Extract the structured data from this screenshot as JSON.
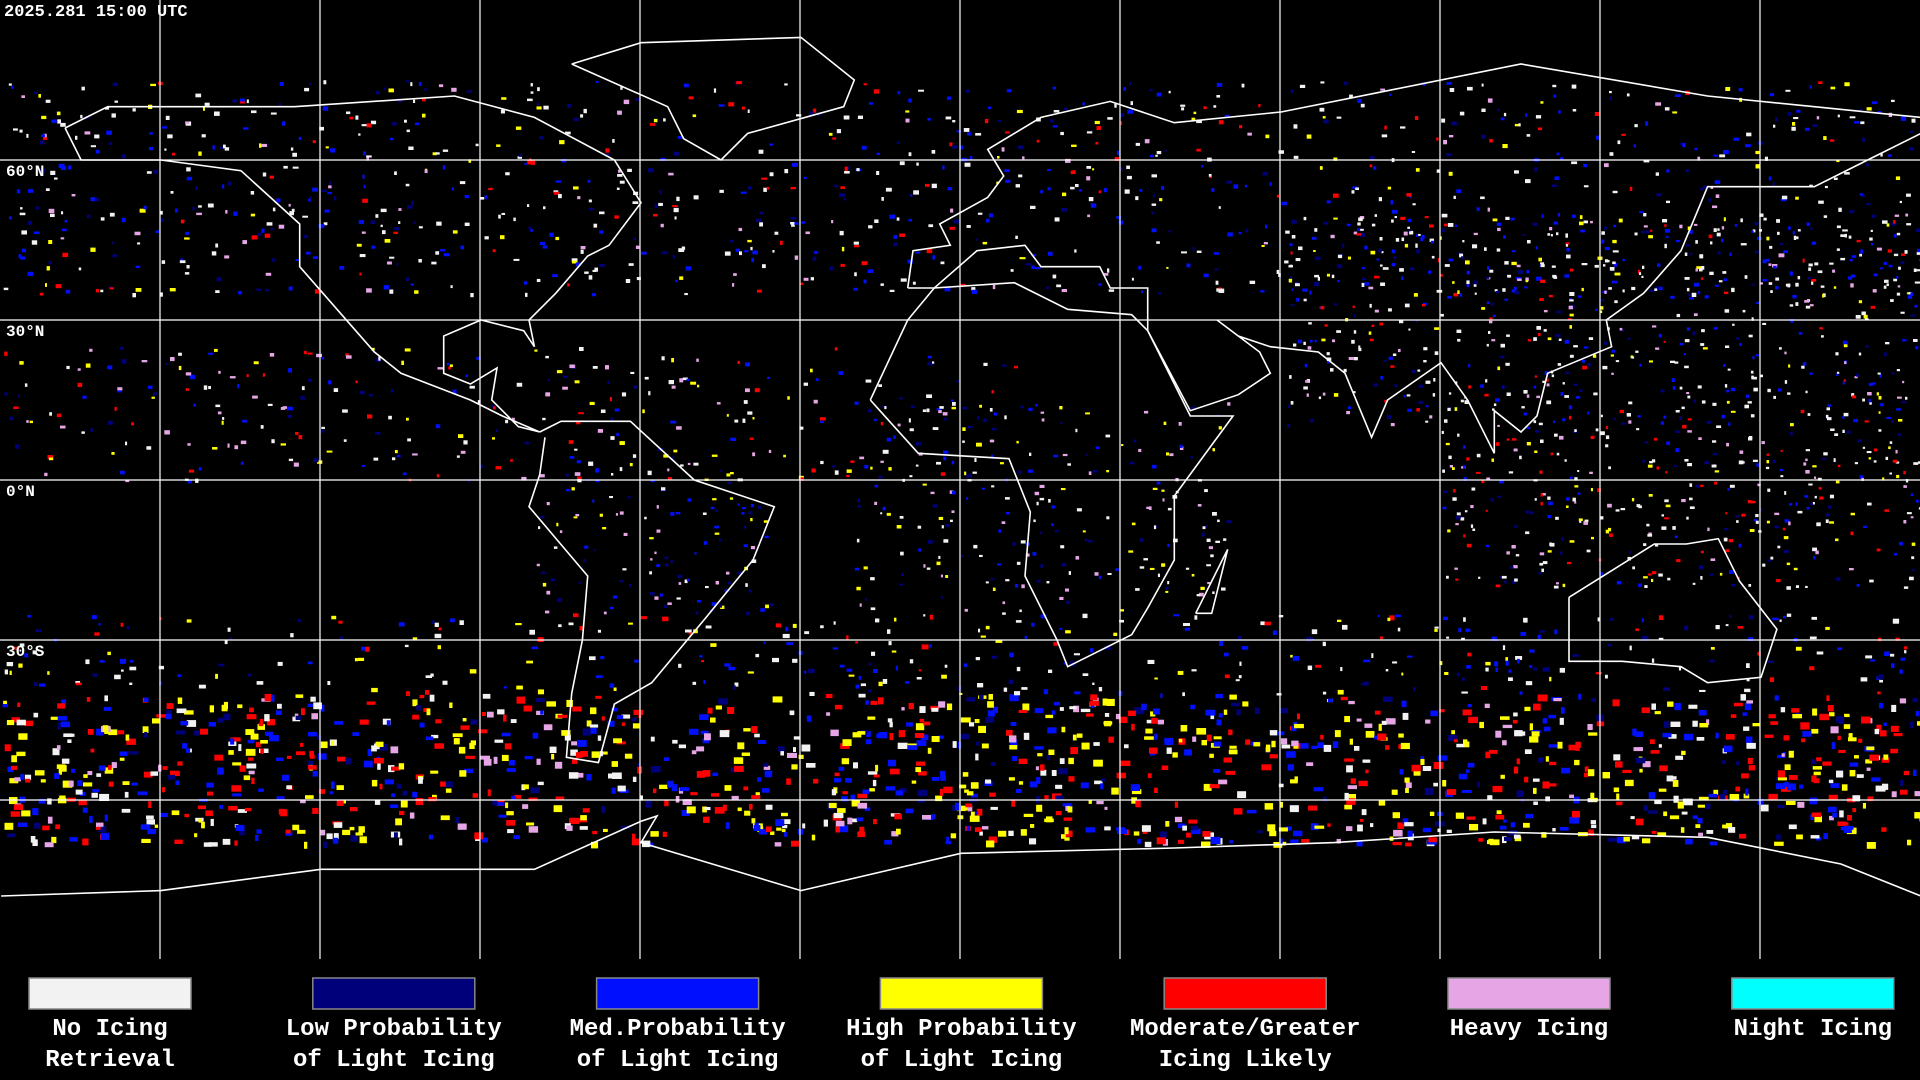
{
  "header": {
    "timestamp": "2025.281 15:00 UTC"
  },
  "map": {
    "latitude_labels": [
      "60°N",
      "30°N",
      "0°N",
      "30°S"
    ]
  },
  "legend": {
    "items": [
      {
        "lines": [
          "No Icing",
          "Retrieval"
        ],
        "color": "#f2f2f2"
      },
      {
        "lines": [
          "Low Probability",
          "of Light Icing"
        ],
        "color": "#00007a"
      },
      {
        "lines": [
          "Med.Probability",
          "of Light Icing"
        ],
        "color": "#0010ff"
      },
      {
        "lines": [
          "High Probability",
          "of Light Icing"
        ],
        "color": "#ffff00"
      },
      {
        "lines": [
          "Moderate/Greater",
          "Icing Likely"
        ],
        "color": "#ff0000"
      },
      {
        "lines": [
          "Heavy Icing"
        ],
        "color": "#e6a6e6"
      },
      {
        "lines": [
          "Night Icing"
        ],
        "color": "#00ffff"
      }
    ]
  }
}
